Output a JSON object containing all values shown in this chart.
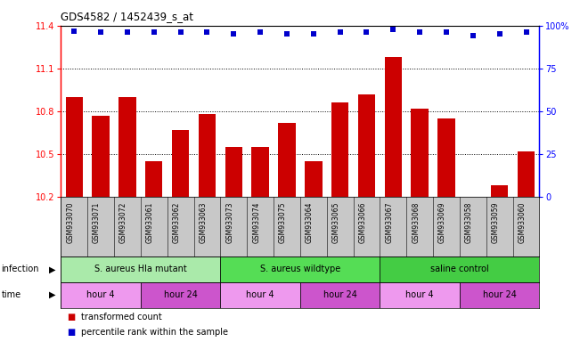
{
  "title": "GDS4582 / 1452439_s_at",
  "samples": [
    "GSM933070",
    "GSM933071",
    "GSM933072",
    "GSM933061",
    "GSM933062",
    "GSM933063",
    "GSM933073",
    "GSM933074",
    "GSM933075",
    "GSM933064",
    "GSM933065",
    "GSM933066",
    "GSM933067",
    "GSM933068",
    "GSM933069",
    "GSM933058",
    "GSM933059",
    "GSM933060"
  ],
  "bar_values": [
    10.9,
    10.77,
    10.9,
    10.45,
    10.67,
    10.78,
    10.55,
    10.55,
    10.72,
    10.45,
    10.86,
    10.92,
    11.18,
    10.82,
    10.75,
    10.2,
    10.28,
    10.52
  ],
  "percentile_values": [
    97,
    96,
    96,
    96,
    96,
    96,
    95,
    96,
    95,
    95,
    96,
    96,
    98,
    96,
    96,
    94,
    95,
    96
  ],
  "ylim_left": [
    10.2,
    11.4
  ],
  "ylim_right": [
    0,
    100
  ],
  "yticks_left": [
    10.2,
    10.5,
    10.8,
    11.1,
    11.4
  ],
  "yticks_right": [
    0,
    25,
    50,
    75,
    100
  ],
  "bar_color": "#cc0000",
  "dot_color": "#0000cc",
  "plot_bg": "#ffffff",
  "label_bg": "#c8c8c8",
  "infection_groups": [
    {
      "label": "S. aureus Hla mutant",
      "start": 0,
      "end": 6,
      "color": "#aaeaaa"
    },
    {
      "label": "S. aureus wildtype",
      "start": 6,
      "end": 12,
      "color": "#55dd55"
    },
    {
      "label": "saline control",
      "start": 12,
      "end": 18,
      "color": "#44cc44"
    }
  ],
  "time_groups": [
    {
      "label": "hour 4",
      "start": 0,
      "end": 3,
      "color": "#ee99ee"
    },
    {
      "label": "hour 24",
      "start": 3,
      "end": 6,
      "color": "#cc55cc"
    },
    {
      "label": "hour 4",
      "start": 6,
      "end": 9,
      "color": "#ee99ee"
    },
    {
      "label": "hour 24",
      "start": 9,
      "end": 12,
      "color": "#cc55cc"
    },
    {
      "label": "hour 4",
      "start": 12,
      "end": 15,
      "color": "#ee99ee"
    },
    {
      "label": "hour 24",
      "start": 15,
      "end": 18,
      "color": "#cc55cc"
    }
  ],
  "legend_items": [
    {
      "label": "transformed count",
      "color": "#cc0000"
    },
    {
      "label": "percentile rank within the sample",
      "color": "#0000cc"
    }
  ]
}
